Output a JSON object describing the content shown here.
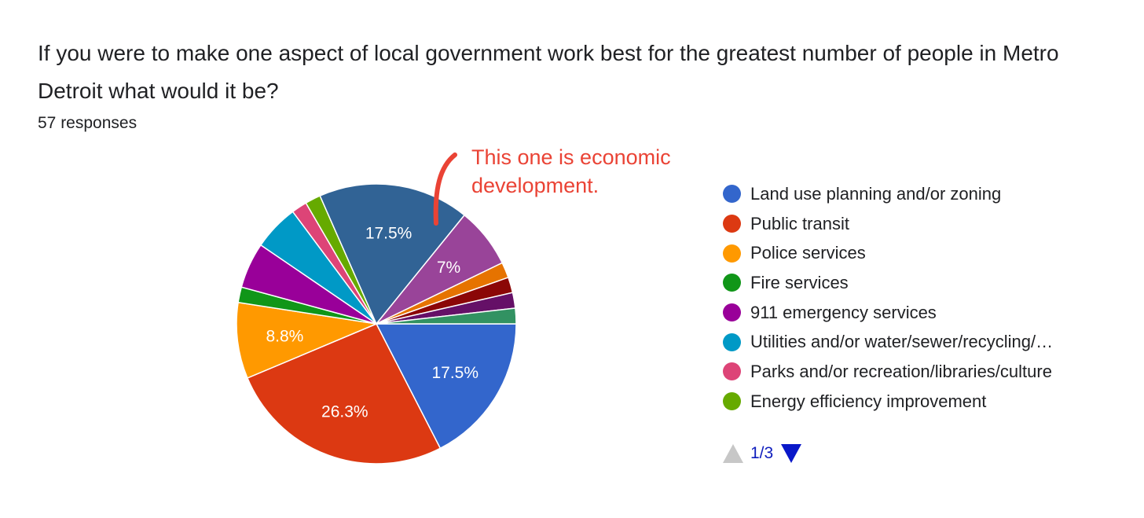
{
  "header": {
    "title": "If you were to make one aspect of local government work best for the greatest number of people in Metro Detroit what would it be?",
    "responses": "57 responses"
  },
  "annotation": {
    "text": "This one is economic development.",
    "color": "#ea4335"
  },
  "pager": {
    "label": "1/3"
  },
  "chart_data": {
    "type": "pie",
    "title": "If you were to make one aspect of local government work best for the greatest number of people in Metro Detroit what would it be?",
    "total_responses": 57,
    "legend_position": "right",
    "slices": [
      {
        "name": "Land use planning and/or zoning",
        "value": 17.5,
        "label": "17.5%",
        "color": "#3366cc",
        "legend": true
      },
      {
        "name": "Public transit",
        "value": 26.3,
        "label": "26.3%",
        "color": "#dc3912",
        "legend": true
      },
      {
        "name": "Police services",
        "value": 8.8,
        "label": "8.8%",
        "color": "#ff9900",
        "legend": true
      },
      {
        "name": "Fire services",
        "value": 1.8,
        "label": "",
        "color": "#109618",
        "legend": true
      },
      {
        "name": "911 emergency services",
        "value": 5.3,
        "label": "",
        "color": "#990099",
        "legend": true
      },
      {
        "name": "Utilities and/or water/sewer/recycling/…",
        "value": 5.3,
        "label": "",
        "color": "#0099c6",
        "legend": true
      },
      {
        "name": "Parks and/or recreation/libraries/culture",
        "value": 1.8,
        "label": "",
        "color": "#dd4477",
        "legend": true
      },
      {
        "name": "Energy efficiency improvement",
        "value": 1.8,
        "label": "",
        "color": "#66aa00",
        "legend": true
      },
      {
        "name": "",
        "value": 17.5,
        "label": "17.5%",
        "color": "#316395",
        "legend": false
      },
      {
        "name": "",
        "value": 7.0,
        "label": "7%",
        "color": "#994499",
        "legend": false
      },
      {
        "name": "",
        "value": 1.8,
        "label": "",
        "color": "#e67300",
        "legend": false
      },
      {
        "name": "",
        "value": 1.8,
        "label": "",
        "color": "#8b0707",
        "legend": false
      },
      {
        "name": "",
        "value": 1.8,
        "label": "",
        "color": "#651067",
        "legend": false
      },
      {
        "name": "",
        "value": 1.8,
        "label": "",
        "color": "#329262",
        "legend": false
      }
    ]
  }
}
